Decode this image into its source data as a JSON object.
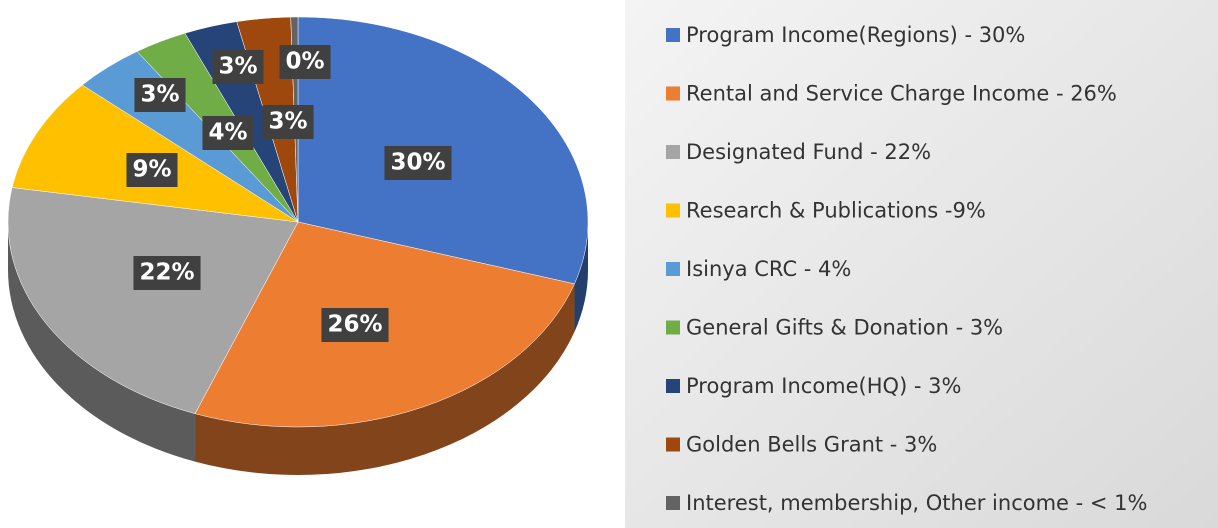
{
  "chart_data": {
    "type": "pie3d",
    "categories": [
      "Program Income(Regions) - 30%",
      "Rental and Service Charge Income - 26%",
      "Designated Fund - 22%",
      "Research & Publications -9%",
      "Isinya CRC - 4%",
      "General Gifts & Donation - 3%",
      "Program Income(HQ) - 3%",
      "Golden Bells Grant - 3%",
      "Interest, membership, Other income - < 1%"
    ],
    "values": [
      30,
      26,
      22,
      9,
      4,
      3,
      3,
      3,
      0.4
    ],
    "value_labels": [
      "30%",
      "26%",
      "22%",
      "9%",
      "4%",
      "3%",
      "3%",
      "3%",
      "0%"
    ],
    "colors": [
      "#4472c4",
      "#ed7d31",
      "#a5a5a5",
      "#ffc000",
      "#5b9bd5",
      "#70ad47",
      "#264478",
      "#9e480e",
      "#636363"
    ],
    "legend": "right"
  }
}
